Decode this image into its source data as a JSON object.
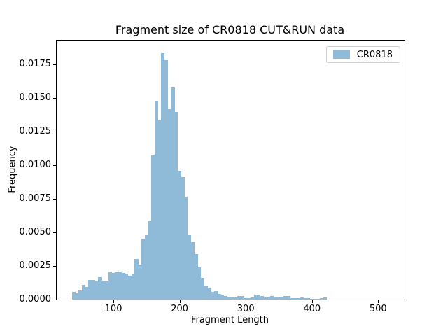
{
  "title": "Fragment size of CR0818 CUT&RUN data",
  "axes": {
    "xlabel": "Fragment Length",
    "ylabel": "Frequency",
    "x_ticks": {
      "values": [
        100,
        200,
        300,
        400,
        500
      ],
      "labels": [
        "100",
        "200",
        "300",
        "400",
        "500"
      ]
    },
    "y_ticks": {
      "values": [
        0.0,
        0.0025,
        0.005,
        0.0075,
        0.01,
        0.0125,
        0.015,
        0.0175
      ],
      "labels": [
        "0.0000",
        "0.0025",
        "0.0050",
        "0.0075",
        "0.0100",
        "0.0125",
        "0.0150",
        "0.0175"
      ]
    }
  },
  "legend": {
    "label": "CR0818",
    "patch_color": "#8fbbd9",
    "position": "upper right"
  },
  "colors": {
    "bar_fill": "#8fbbd9",
    "spine": "#000000",
    "background": "#ffffff",
    "legend_border": "#d2d2d2"
  },
  "chart_data": {
    "type": "bar",
    "subtype": "histogram",
    "title": "Fragment size of CR0818 CUT&RUN data",
    "xlabel": "Fragment Length",
    "ylabel": "Frequency",
    "series_name": "CR0818",
    "grid": false,
    "legend_position": "upper right",
    "xlim": [
      13.2,
      538.8
    ],
    "ylim": [
      0,
      0.019274
    ],
    "bin_width": 5,
    "bins": [
      36,
      41,
      46,
      51,
      56,
      61,
      66,
      71,
      76,
      81,
      86,
      91,
      96,
      101,
      106,
      111,
      116,
      121,
      126,
      131,
      136,
      141,
      146,
      151,
      156,
      161,
      166,
      171,
      176,
      181,
      186,
      191,
      196,
      201,
      206,
      211,
      216,
      221,
      226,
      231,
      236,
      241,
      246,
      251,
      256,
      261,
      266,
      271,
      276,
      281,
      286,
      291,
      296,
      301,
      306,
      311,
      316,
      321,
      326,
      331,
      336,
      341,
      346,
      351,
      356,
      361,
      366,
      371,
      376,
      381,
      386,
      391,
      396,
      401,
      406,
      411,
      416
    ],
    "values": [
      0.00055,
      0.00045,
      0.0007,
      0.00108,
      0.00095,
      0.00145,
      0.00145,
      0.00138,
      0.00168,
      0.00143,
      0.00141,
      0.00204,
      0.00196,
      0.00204,
      0.00207,
      0.00196,
      0.00193,
      0.00176,
      0.00186,
      0.003,
      0.0026,
      0.00455,
      0.00478,
      0.00586,
      0.01076,
      0.01477,
      0.01333,
      0.01835,
      0.01781,
      0.01423,
      0.0158,
      0.01394,
      0.00957,
      0.00912,
      0.00768,
      0.00478,
      0.00429,
      0.00337,
      0.00241,
      0.0016,
      0.00102,
      0.00081,
      0.00055,
      0.00064,
      0.00042,
      0.00034,
      0.00024,
      0.0002,
      0.00017,
      0.00017,
      0.00024,
      0.00024,
      0.00012,
      0.00012,
      0.00017,
      0.00029,
      0.00034,
      0.00024,
      0.00017,
      0.0002,
      0.00024,
      0.0002,
      0.00017,
      0.0002,
      0.00024,
      0.00024,
      0.00012,
      8e-05,
      8e-05,
      0.00014,
      8e-05,
      8e-05,
      6e-05,
      6e-05,
      6e-05,
      8e-05,
      0.00014
    ]
  }
}
